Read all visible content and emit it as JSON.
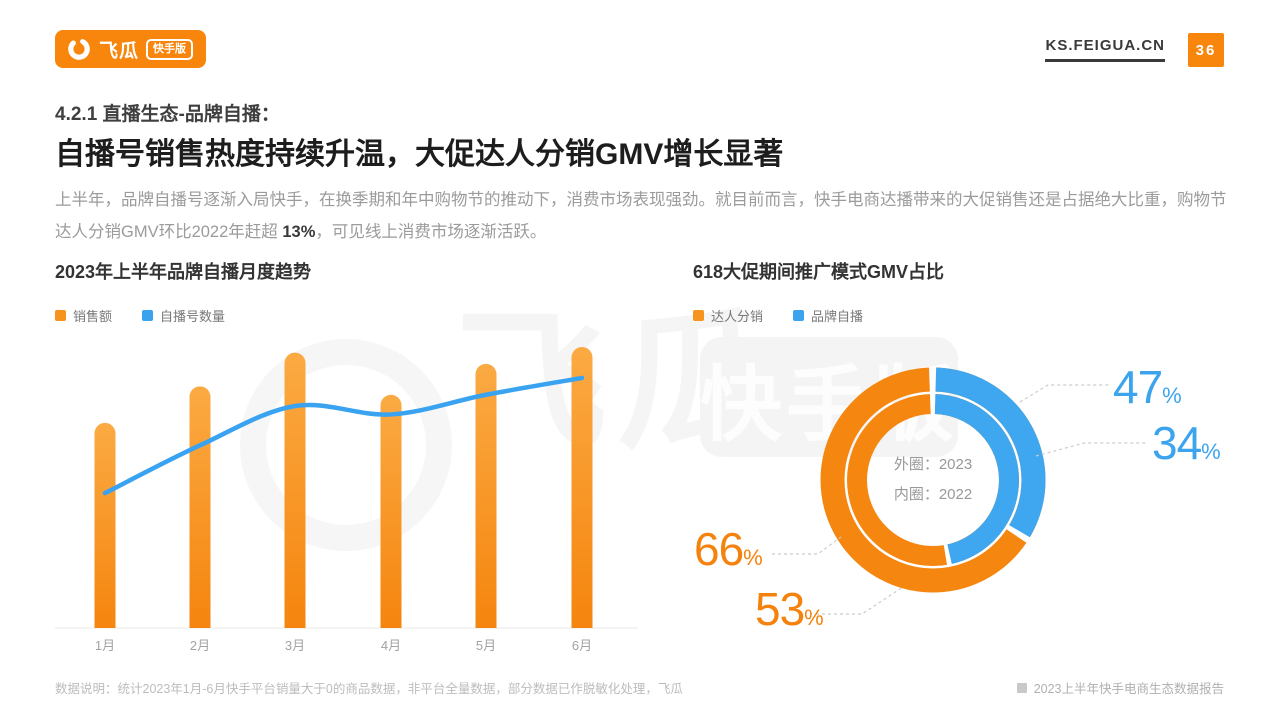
{
  "topbar": {
    "logo_text": "飞瓜",
    "logo_badge": "快手版",
    "site_url": "KS.FEIGUA.CN",
    "page_number": "36"
  },
  "heading": {
    "kicker": "4.2.1 直播生态-品牌自播：",
    "title": "自播号销售热度持续升温，大促达人分销GMV增长显著"
  },
  "paragraph": {
    "prefix": "上半年，品牌自播号逐渐入局快手，在换季期和年中购物节的推动下，消费市场表现强劲。就目前而言，快手电商达播带来的大促销售还是占据绝大比重，购物节达人分销GMV环比2022年赶超 ",
    "highlight": "13%",
    "suffix": "，可见线上消费市场逐渐活跃。"
  },
  "colors": {
    "brand_orange": "#F8860D",
    "bar_orange_top": "#FBAA43",
    "bar_orange_bottom": "#F5850E",
    "line_blue": "#39A3F1",
    "donut_orange": "#F5860F",
    "donut_blue": "#3EA7EF",
    "label_blue": "#3CA4EC",
    "label_orange": "#F5820D",
    "legend_orange": "#F7941E",
    "legend_blue": "#3BA3EE"
  },
  "chart_data": [
    {
      "type": "bar",
      "title": "2023年上半年品牌自播月度趋势",
      "categories": [
        "1月",
        "2月",
        "3月",
        "4月",
        "5月",
        "6月"
      ],
      "series": [
        {
          "name": "销售额",
          "mark": "bar",
          "color": "#F7941E",
          "values_relative": [
            73,
            86,
            98,
            83,
            94,
            100
          ]
        },
        {
          "name": "自播号数量",
          "mark": "line",
          "color": "#39A3F1",
          "values_relative": [
            48,
            65,
            79,
            76,
            83,
            89
          ]
        }
      ],
      "xlabel": "",
      "ylabel": "",
      "note": "无Y轴刻度；数值为按像素估算的相对高度（最大值=100）",
      "grid": "off",
      "legend_position": "top-left"
    },
    {
      "type": "pie",
      "title": "618大促期间推广模式GMV占比",
      "legend": [
        {
          "label": "达人分销",
          "color": "#F7941E"
        },
        {
          "label": "品牌自播",
          "color": "#3BA3EE"
        }
      ],
      "rings": [
        {
          "name": "外圈",
          "year": "2023",
          "slices": [
            {
              "label": "达人分销",
              "value": 66
            },
            {
              "label": "品牌自播",
              "value": 34
            }
          ]
        },
        {
          "name": "内圈",
          "year": "2022",
          "slices": [
            {
              "label": "达人分销",
              "value": 53
            },
            {
              "label": "品牌自播",
              "value": 47
            }
          ]
        }
      ],
      "center_text": [
        "外圈：2023",
        "内圈：2022"
      ],
      "callouts": [
        {
          "value": "47",
          "suffix": "%",
          "color": "#3CA4EC"
        },
        {
          "value": "34",
          "suffix": "%",
          "color": "#3CA4EC"
        },
        {
          "value": "66",
          "suffix": "%",
          "color": "#F5820D"
        },
        {
          "value": "53",
          "suffix": "%",
          "color": "#F5820D"
        }
      ]
    }
  ],
  "footer": {
    "note": "数据说明：统计2023年1月-6月快手平台销量大于0的商品数据，非平台全量数据，部分数据已作脱敏化处理，飞瓜",
    "report": "2023上半年快手电商生态数据报告"
  },
  "watermark": {
    "text": "飞瓜",
    "badge": "快手版"
  }
}
